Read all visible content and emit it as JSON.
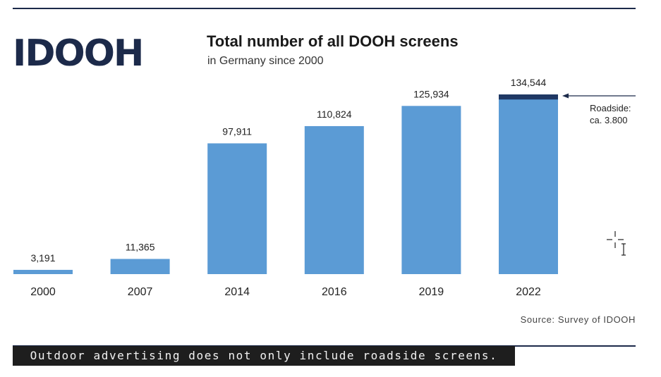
{
  "logo_text": "IDOOH",
  "header": {
    "title": "Total number of all DOOH screens",
    "subtitle": "in Germany since 2000"
  },
  "source": "Source: Survey of IDOOH",
  "caption": "Outdoor advertising does not only include roadside screens.",
  "icons": [
    "idooh-logo",
    "text-cursor-icon"
  ],
  "colors": {
    "bar": "#5b9bd5",
    "roadside_segment": "#1f3864",
    "rule": "#1c2a4a",
    "caption_bg": "#1e1e1e"
  },
  "chart_data": {
    "type": "bar",
    "title": "Total number of all DOOH screens",
    "subtitle": "in Germany since 2000",
    "categories": [
      "2000",
      "2007",
      "2014",
      "2016",
      "2019",
      "2022"
    ],
    "values": [
      3191,
      11365,
      97911,
      110824,
      125934,
      134544
    ],
    "value_labels": [
      "3,191",
      "11,365",
      "97,911",
      "110,824",
      "125,934",
      "134,544"
    ],
    "ylim": [
      0,
      134544
    ],
    "grid": false,
    "highlight": {
      "category": "2022",
      "value": 3800,
      "label_lines": [
        "Roadside:",
        "ca. 3.800"
      ]
    }
  }
}
